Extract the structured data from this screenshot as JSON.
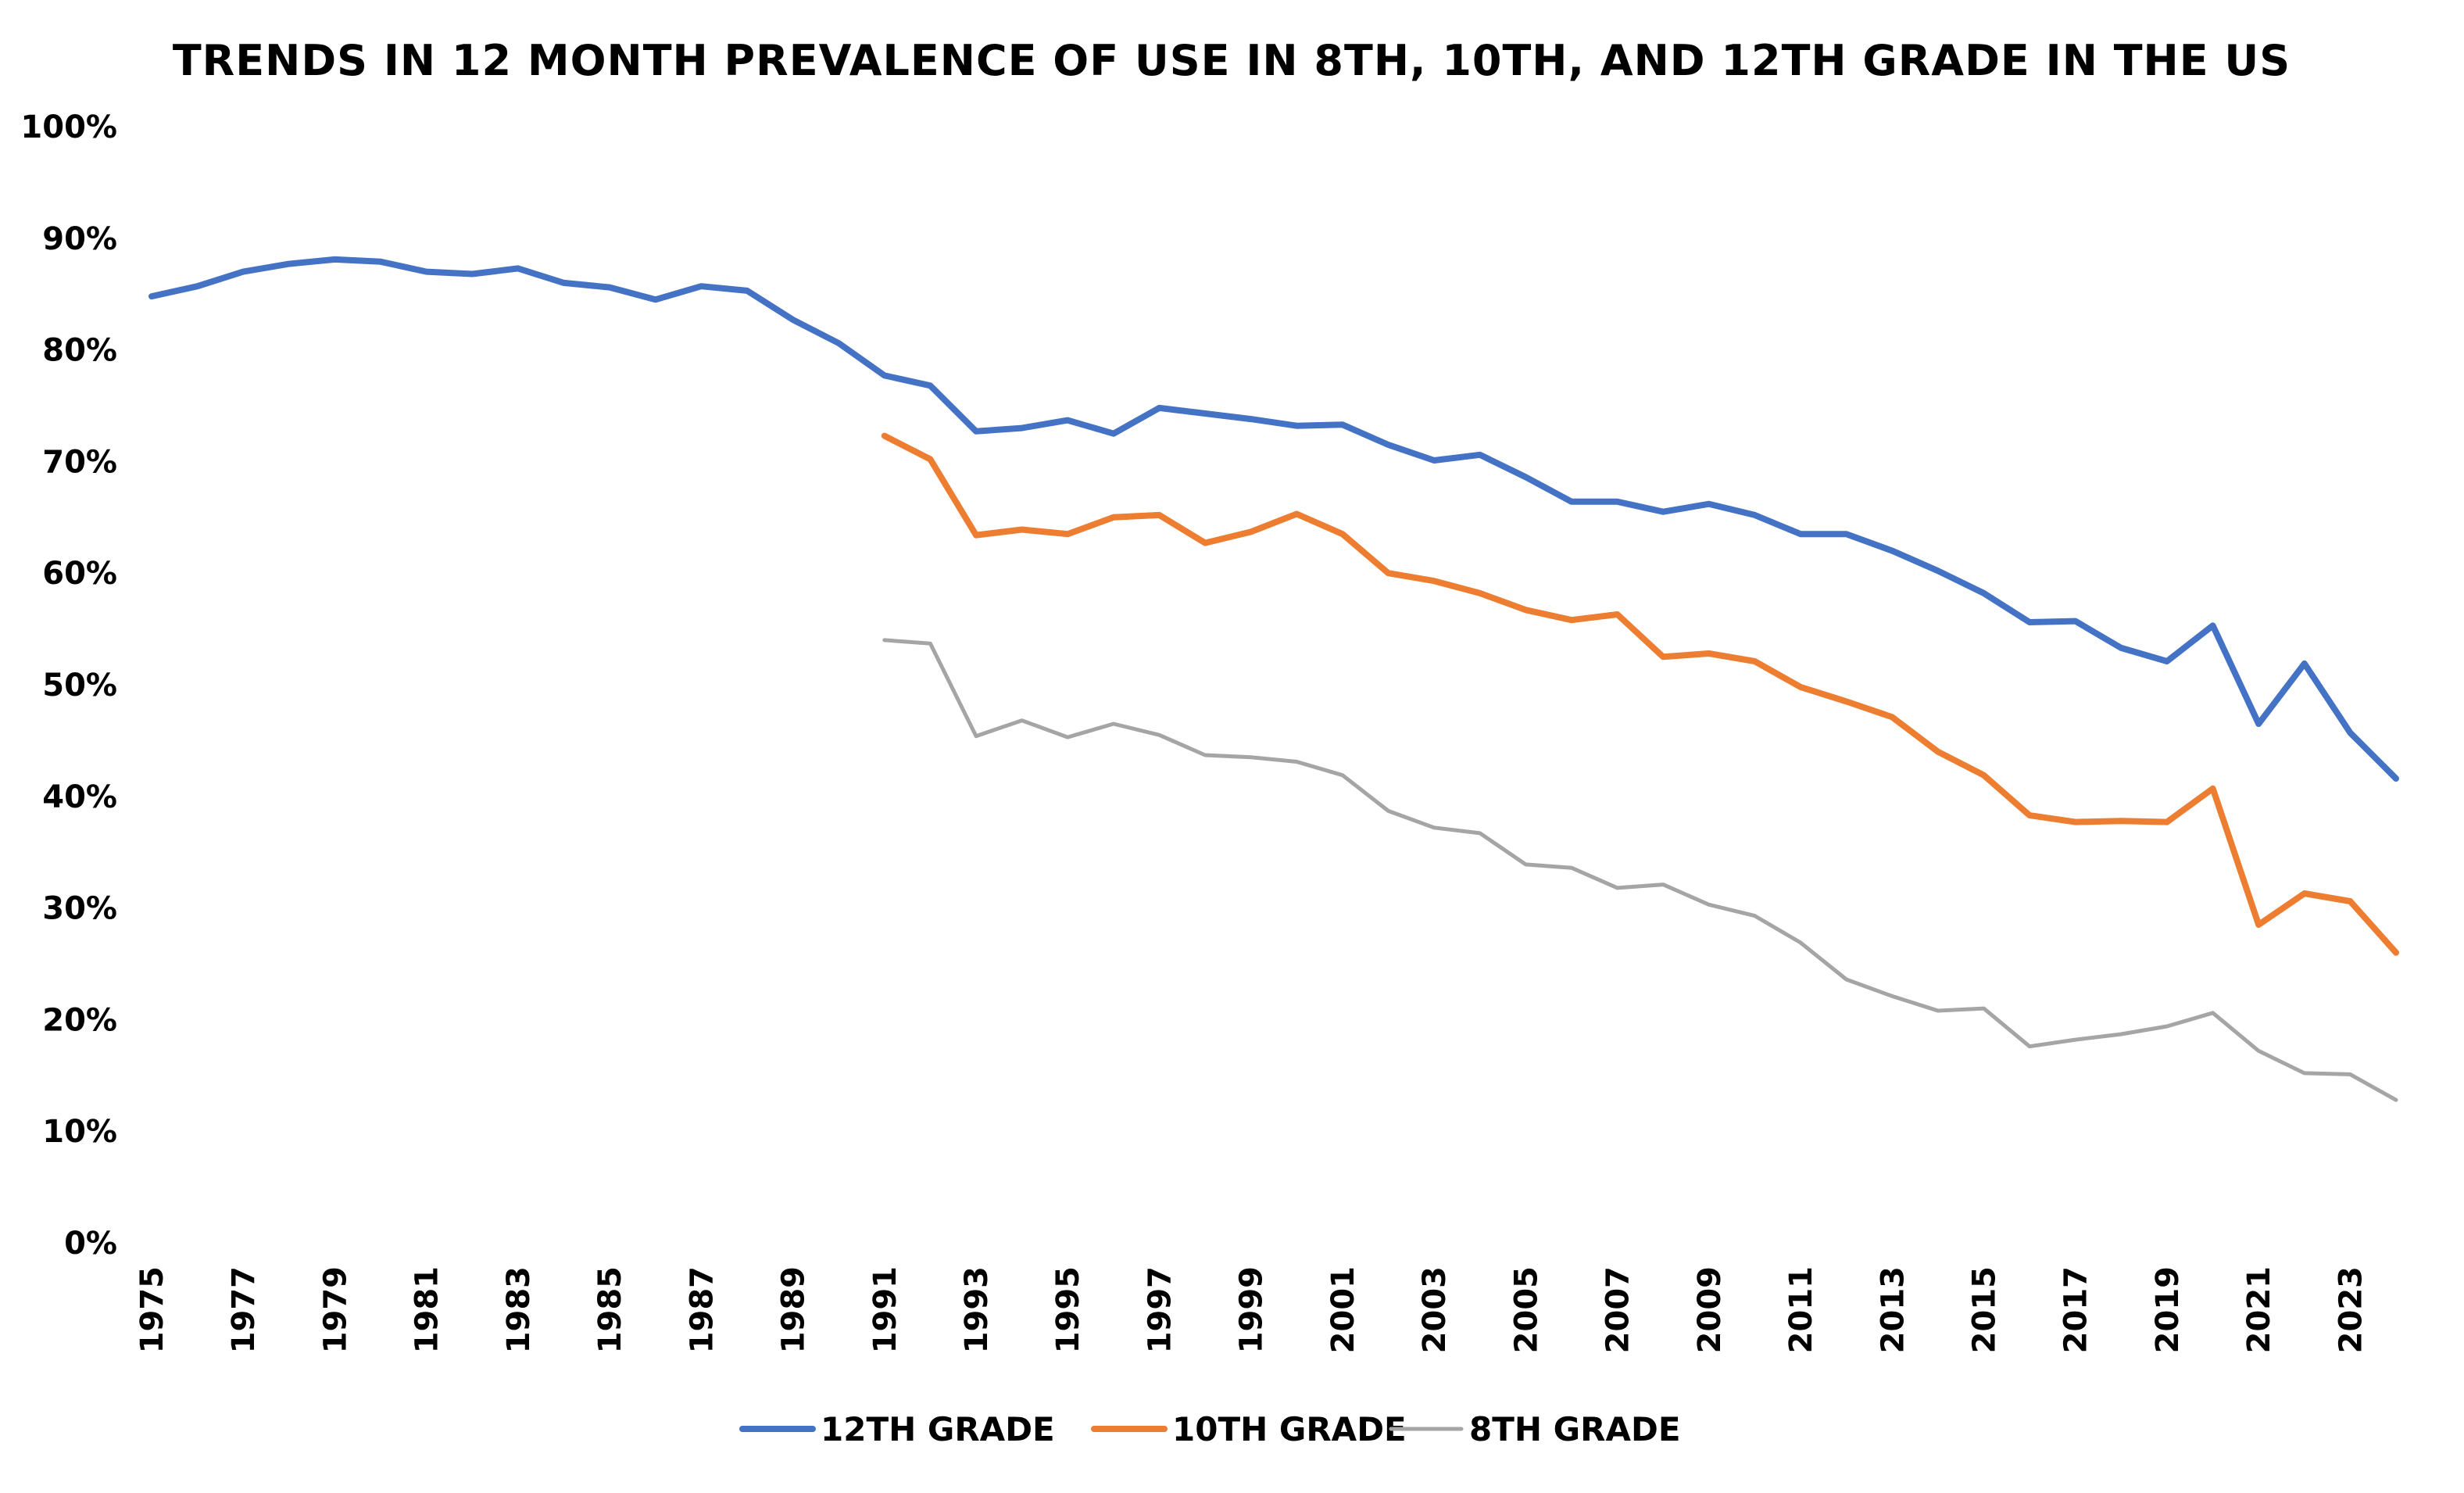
{
  "chart_data": {
    "type": "line",
    "title": "TRENDS IN 12 MONTH PREVALENCE OF USE IN 8TH, 10TH, AND 12TH GRADE IN THE US",
    "xlabel": "",
    "ylabel": "",
    "ylim": [
      0,
      100
    ],
    "xlim": [
      1975,
      2024
    ],
    "y_ticks": [
      "0%",
      "10%",
      "20%",
      "30%",
      "40%",
      "50%",
      "60%",
      "70%",
      "80%",
      "90%",
      "100%"
    ],
    "x_ticks": [
      "1975",
      "1977",
      "1979",
      "1981",
      "1983",
      "1985",
      "1987",
      "1989",
      "1991",
      "1993",
      "1995",
      "1997",
      "1999",
      "2001",
      "2003",
      "2005",
      "2007",
      "2009",
      "2011",
      "2013",
      "2015",
      "2017",
      "2019",
      "2021",
      "2023"
    ],
    "grid": false,
    "legend_position": "bottom",
    "series": [
      {
        "name": "12TH GRADE",
        "color": "#4472C4",
        "x": [
          1975,
          1976,
          1977,
          1978,
          1979,
          1980,
          1981,
          1982,
          1983,
          1984,
          1985,
          1986,
          1987,
          1988,
          1989,
          1990,
          1991,
          1992,
          1993,
          1994,
          1995,
          1996,
          1997,
          1998,
          1999,
          2000,
          2001,
          2002,
          2003,
          2004,
          2005,
          2006,
          2007,
          2008,
          2009,
          2010,
          2011,
          2012,
          2013,
          2014,
          2015,
          2016,
          2017,
          2018,
          2019,
          2020,
          2021,
          2022,
          2023,
          2024
        ],
        "values": [
          84.8,
          85.7,
          87.0,
          87.7,
          88.1,
          87.9,
          87.0,
          86.8,
          87.3,
          86.0,
          85.6,
          84.5,
          85.7,
          85.3,
          82.7,
          80.6,
          77.7,
          76.8,
          72.7,
          73.0,
          73.7,
          72.5,
          74.8,
          74.3,
          73.8,
          73.2,
          73.3,
          71.5,
          70.1,
          70.6,
          68.6,
          66.4,
          66.4,
          65.5,
          66.2,
          65.2,
          63.5,
          63.5,
          62.0,
          60.2,
          58.2,
          55.6,
          55.7,
          53.3,
          52.1,
          55.3,
          46.5,
          51.9,
          45.7,
          41.6
        ]
      },
      {
        "name": "10TH GRADE",
        "color": "#ED7D31",
        "x": [
          1991,
          1992,
          1993,
          1994,
          1995,
          1996,
          1997,
          1998,
          1999,
          2000,
          2001,
          2002,
          2003,
          2004,
          2005,
          2006,
          2007,
          2008,
          2009,
          2010,
          2011,
          2012,
          2013,
          2014,
          2015,
          2016,
          2017,
          2018,
          2019,
          2020,
          2021,
          2022,
          2023,
          2024
        ],
        "values": [
          72.3,
          70.2,
          63.4,
          63.9,
          63.5,
          65.0,
          65.2,
          62.7,
          63.7,
          65.3,
          63.5,
          60.0,
          59.3,
          58.2,
          56.7,
          55.8,
          56.3,
          52.5,
          52.8,
          52.1,
          49.8,
          48.5,
          47.1,
          44.0,
          41.9,
          38.3,
          37.7,
          37.8,
          37.7,
          40.7,
          28.5,
          31.3,
          30.6,
          26.0
        ]
      },
      {
        "name": "8TH GRADE",
        "color": "#A5A5A5",
        "x": [
          1991,
          1992,
          1993,
          1994,
          1995,
          1996,
          1997,
          1998,
          1999,
          2000,
          2001,
          2002,
          2003,
          2004,
          2005,
          2006,
          2007,
          2008,
          2009,
          2010,
          2011,
          2012,
          2013,
          2014,
          2015,
          2016,
          2017,
          2018,
          2019,
          2020,
          2021,
          2022,
          2023,
          2024
        ],
        "values": [
          54.0,
          53.7,
          45.4,
          46.8,
          45.3,
          46.5,
          45.5,
          43.7,
          43.5,
          43.1,
          41.9,
          38.7,
          37.2,
          36.7,
          33.9,
          33.6,
          31.8,
          32.1,
          30.3,
          29.3,
          26.9,
          23.6,
          22.1,
          20.8,
          21.0,
          17.6,
          18.2,
          18.7,
          19.4,
          20.6,
          17.2,
          15.2,
          15.1,
          12.8
        ]
      }
    ]
  }
}
